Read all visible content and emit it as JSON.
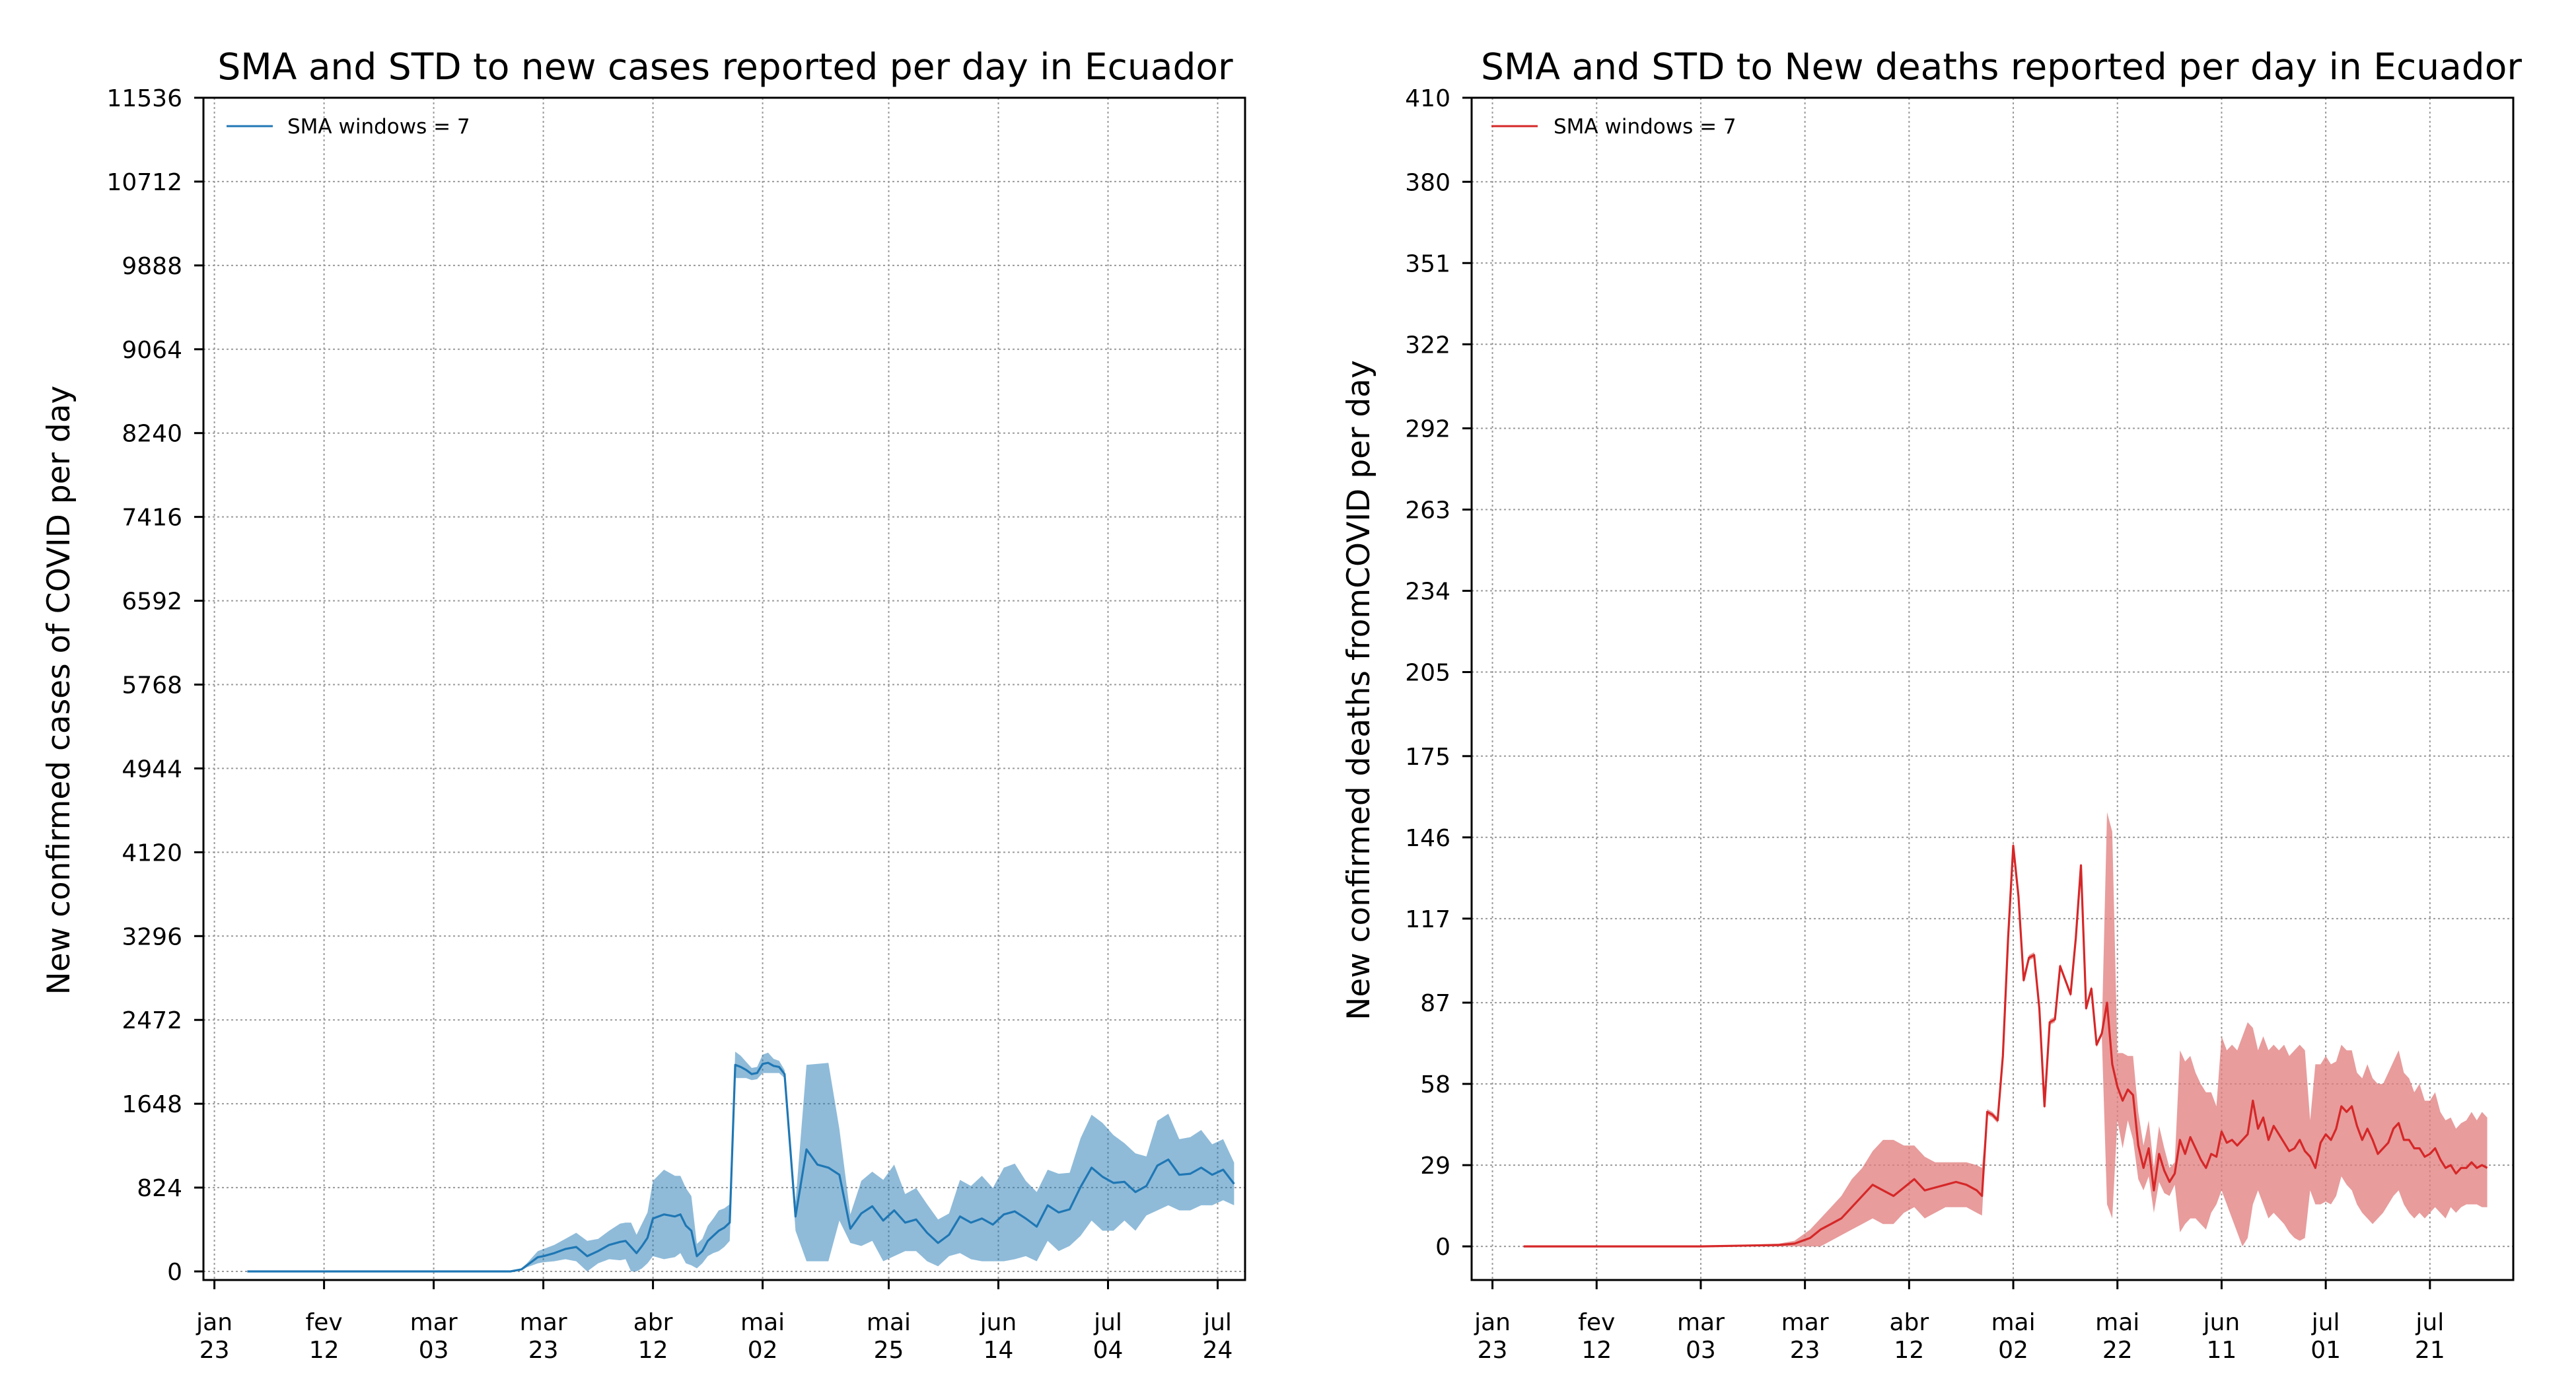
{
  "chart_data": [
    {
      "type": "line",
      "title": "SMA and STD to new cases reported per day in Ecuador",
      "xlabel": "",
      "ylabel": "New confirmed cases of COVID per day",
      "ylim": [
        0,
        11536
      ],
      "yticks": [
        0,
        824,
        1648,
        2472,
        3296,
        4120,
        4944,
        5768,
        6592,
        7416,
        8240,
        9064,
        9888,
        10712,
        11536
      ],
      "xlim": [
        -2,
        188
      ],
      "xticks": [
        {
          "pos": 0,
          "label1": "jan",
          "label2": "23"
        },
        {
          "pos": 20,
          "label1": "fev",
          "label2": "12"
        },
        {
          "pos": 40,
          "label1": "mar",
          "label2": "03"
        },
        {
          "pos": 60,
          "label1": "mar",
          "label2": "23"
        },
        {
          "pos": 80,
          "label1": "abr",
          "label2": "12"
        },
        {
          "pos": 100,
          "label1": "mai",
          "label2": "02"
        },
        {
          "pos": 123,
          "label1": "mai",
          "label2": "25"
        },
        {
          "pos": 143,
          "label1": "jun",
          "label2": "14"
        },
        {
          "pos": 163,
          "label1": "jul",
          "label2": "04"
        },
        {
          "pos": 183,
          "label1": "jul",
          "label2": "24"
        }
      ],
      "grid": true,
      "legend_position": "top-left",
      "series": [
        {
          "name": "SMA windows = 7",
          "color": "#1f77b4",
          "band_color": "#1f77b4",
          "x": [
            6,
            20,
            40,
            54,
            56,
            57,
            58,
            59,
            60,
            62,
            64,
            66,
            68,
            70,
            72,
            74,
            75,
            76,
            77,
            78,
            79,
            80,
            82,
            84,
            85,
            86,
            87,
            88,
            89,
            90,
            91,
            92,
            93,
            94,
            95,
            96,
            97,
            98,
            99,
            100,
            101,
            102,
            103,
            104,
            106,
            108,
            110,
            112,
            114,
            116,
            118,
            120,
            122,
            124,
            126,
            128,
            130,
            132,
            134,
            136,
            138,
            140,
            142,
            144,
            146,
            148,
            150,
            152,
            154,
            156,
            158,
            160,
            162,
            164,
            166,
            168,
            170,
            172,
            174,
            176,
            178,
            180,
            182,
            184,
            186
          ],
          "y": [
            0,
            0,
            0,
            0,
            20,
            60,
            100,
            140,
            150,
            180,
            220,
            240,
            150,
            200,
            260,
            290,
            300,
            240,
            180,
            250,
            330,
            520,
            560,
            540,
            560,
            450,
            400,
            150,
            200,
            300,
            350,
            400,
            430,
            480,
            2030,
            2010,
            1980,
            1940,
            1950,
            2040,
            2050,
            2020,
            2010,
            1940,
            540,
            1200,
            1050,
            1020,
            950,
            420,
            570,
            640,
            500,
            600,
            480,
            510,
            380,
            280,
            360,
            540,
            480,
            520,
            460,
            560,
            590,
            520,
            440,
            650,
            580,
            610,
            830,
            1020,
            930,
            870,
            880,
            780,
            840,
            1040,
            1100,
            950,
            960,
            1020,
            950,
            1000,
            860
          ],
          "band_low": [
            0,
            0,
            0,
            0,
            10,
            40,
            60,
            80,
            90,
            100,
            120,
            100,
            0,
            80,
            120,
            110,
            120,
            0,
            0,
            30,
            80,
            150,
            120,
            140,
            180,
            80,
            60,
            30,
            80,
            150,
            180,
            200,
            240,
            300,
            1900,
            1900,
            1900,
            1880,
            1890,
            1950,
            1950,
            1950,
            1950,
            1900,
            400,
            100,
            100,
            100,
            500,
            280,
            250,
            300,
            100,
            150,
            200,
            200,
            100,
            50,
            150,
            180,
            120,
            100,
            100,
            100,
            120,
            150,
            100,
            300,
            200,
            250,
            350,
            500,
            400,
            400,
            500,
            400,
            550,
            600,
            650,
            600,
            600,
            650,
            650,
            700,
            650
          ],
          "band_high": [
            0,
            0,
            0,
            0,
            30,
            80,
            140,
            200,
            220,
            260,
            320,
            380,
            300,
            320,
            400,
            470,
            480,
            480,
            360,
            470,
            580,
            890,
            1000,
            940,
            940,
            820,
            740,
            270,
            320,
            450,
            520,
            600,
            620,
            660,
            2160,
            2120,
            2060,
            2000,
            2010,
            2130,
            2150,
            2090,
            2070,
            1980,
            680,
            2030,
            2040,
            2050,
            1400,
            560,
            890,
            980,
            900,
            1050,
            760,
            820,
            660,
            510,
            570,
            900,
            840,
            940,
            820,
            1020,
            1060,
            890,
            780,
            1000,
            960,
            970,
            1310,
            1540,
            1460,
            1340,
            1260,
            1160,
            1130,
            1480,
            1550,
            1300,
            1320,
            1390,
            1250,
            1300,
            1070
          ]
        }
      ]
    },
    {
      "type": "line",
      "title": "SMA and STD to New deaths reported per day in Ecuador",
      "xlabel": "",
      "ylabel": "New confirmed deaths fromCOVID per day",
      "ylim": [
        -12,
        410
      ],
      "yticks": [
        {
          "value": 0,
          "label": "0"
        },
        {
          "value": 29,
          "label": "29"
        },
        {
          "value": 58,
          "label": "58"
        },
        {
          "value": 87,
          "label": "87"
        },
        {
          "value": 117,
          "label": "117"
        },
        {
          "value": 146,
          "label": "146"
        },
        {
          "value": 175,
          "label": "175"
        },
        {
          "value": 205,
          "label": "205"
        },
        {
          "value": 234,
          "label": "234"
        },
        {
          "value": 263,
          "label": "263"
        },
        {
          "value": 292,
          "label": "292"
        },
        {
          "value": 322,
          "label": "322"
        },
        {
          "value": 351,
          "label": "351"
        },
        {
          "value": 380,
          "label": "380"
        },
        {
          "value": 410,
          "label": "410"
        }
      ],
      "xlim": [
        -4,
        196
      ],
      "xticks": [
        {
          "pos": 0,
          "label1": "jan",
          "label2": "23"
        },
        {
          "pos": 20,
          "label1": "fev",
          "label2": "12"
        },
        {
          "pos": 40,
          "label1": "mar",
          "label2": "03"
        },
        {
          "pos": 60,
          "label1": "mar",
          "label2": "23"
        },
        {
          "pos": 80,
          "label1": "abr",
          "label2": "12"
        },
        {
          "pos": 100,
          "label1": "mai",
          "label2": "02"
        },
        {
          "pos": 120,
          "label1": "mai",
          "label2": "22"
        },
        {
          "pos": 140,
          "label1": "jun",
          "label2": "11"
        },
        {
          "pos": 160,
          "label1": "jul",
          "label2": "01"
        },
        {
          "pos": 180,
          "label1": "jul",
          "label2": "21"
        }
      ],
      "grid": true,
      "legend_position": "top-left",
      "series": [
        {
          "name": "SMA windows = 7",
          "color": "#d62728",
          "band_color": "#e07b7b",
          "x": [
            6,
            20,
            40,
            55,
            58,
            61,
            63,
            65,
            67,
            69,
            71,
            73,
            75,
            77,
            79,
            81,
            83,
            85,
            87,
            89,
            91,
            93,
            94,
            95,
            96,
            97,
            98,
            99,
            100,
            101,
            102,
            103,
            104,
            105,
            106,
            107,
            108,
            109,
            110,
            111,
            112,
            113,
            114,
            115,
            116,
            117,
            118,
            119,
            120,
            121,
            122,
            123,
            124,
            125,
            126,
            127,
            128,
            129,
            130,
            131,
            132,
            133,
            134,
            135,
            136,
            137,
            138,
            139,
            140,
            141,
            142,
            143,
            144,
            145,
            146,
            147,
            148,
            149,
            150,
            151,
            152,
            153,
            154,
            155,
            156,
            157,
            158,
            159,
            160,
            161,
            162,
            163,
            164,
            165,
            166,
            167,
            168,
            169,
            170,
            171,
            172,
            173,
            174,
            175,
            176,
            177,
            178,
            179,
            180,
            181,
            182,
            183,
            184,
            185,
            186,
            187,
            188,
            189,
            190,
            191
          ],
          "y": [
            0,
            0,
            0,
            0.5,
            1,
            3,
            6,
            8,
            10,
            14,
            18,
            22,
            20,
            18,
            21,
            24,
            20,
            21,
            22,
            23,
            22,
            20,
            18,
            48,
            47,
            45,
            68,
            110,
            143,
            125,
            95,
            103,
            104,
            85,
            50,
            80,
            81,
            100,
            95,
            90,
            110,
            136,
            85,
            92,
            72,
            76,
            87,
            65,
            57,
            52,
            56,
            54,
            36,
            28,
            35,
            20,
            33,
            27,
            23,
            26,
            38,
            33,
            39,
            35,
            31,
            28,
            33,
            32,
            41,
            37,
            38,
            36,
            38,
            40,
            52,
            42,
            46,
            38,
            43,
            40,
            37,
            34,
            35,
            38,
            34,
            32,
            28,
            37,
            40,
            38,
            42,
            50,
            48,
            50,
            43,
            38,
            42,
            38,
            33,
            35,
            37,
            42,
            44,
            38,
            38,
            35,
            35,
            32,
            33,
            35,
            31,
            28,
            29,
            26,
            28,
            28,
            30,
            28,
            29,
            28
          ],
          "band_low": [
            0,
            0,
            0,
            0,
            0,
            0,
            0,
            2,
            4,
            6,
            8,
            10,
            8,
            8,
            12,
            14,
            10,
            12,
            14,
            14,
            14,
            12,
            11,
            47,
            46,
            44,
            67,
            108,
            141,
            123,
            94,
            102,
            103,
            84,
            49,
            79,
            80,
            99,
            94,
            89,
            109,
            135,
            84,
            91,
            71,
            75,
            15,
            10,
            45,
            35,
            45,
            38,
            24,
            20,
            25,
            12,
            23,
            19,
            18,
            22,
            5,
            8,
            10,
            10,
            8,
            6,
            12,
            15,
            20,
            15,
            10,
            5,
            0,
            3,
            15,
            20,
            15,
            10,
            12,
            10,
            8,
            5,
            3,
            2,
            3,
            20,
            15,
            15,
            16,
            15,
            18,
            25,
            22,
            20,
            15,
            12,
            10,
            8,
            10,
            12,
            15,
            18,
            20,
            15,
            12,
            10,
            12,
            10,
            12,
            14,
            12,
            10,
            14,
            12,
            14,
            15,
            15,
            15,
            14,
            14
          ],
          "band_high": [
            0,
            0,
            0,
            1,
            2,
            6,
            10,
            14,
            18,
            24,
            28,
            34,
            38,
            38,
            36,
            36,
            32,
            30,
            30,
            30,
            30,
            29,
            28,
            49,
            48,
            46,
            69,
            112,
            145,
            127,
            96,
            104,
            105,
            86,
            51,
            81,
            82,
            101,
            96,
            91,
            111,
            137,
            86,
            93,
            73,
            77,
            155,
            148,
            69,
            69,
            68,
            68,
            48,
            36,
            45,
            28,
            43,
            35,
            28,
            30,
            70,
            66,
            68,
            62,
            58,
            55,
            55,
            50,
            75,
            70,
            72,
            70,
            75,
            80,
            78,
            70,
            75,
            70,
            72,
            70,
            72,
            68,
            70,
            72,
            70,
            45,
            65,
            65,
            68,
            65,
            66,
            72,
            70,
            70,
            62,
            60,
            65,
            60,
            58,
            58,
            62,
            66,
            70,
            62,
            60,
            55,
            58,
            52,
            52,
            55,
            48,
            45,
            46,
            42,
            44,
            45,
            48,
            45,
            48,
            46
          ]
        }
      ]
    }
  ]
}
